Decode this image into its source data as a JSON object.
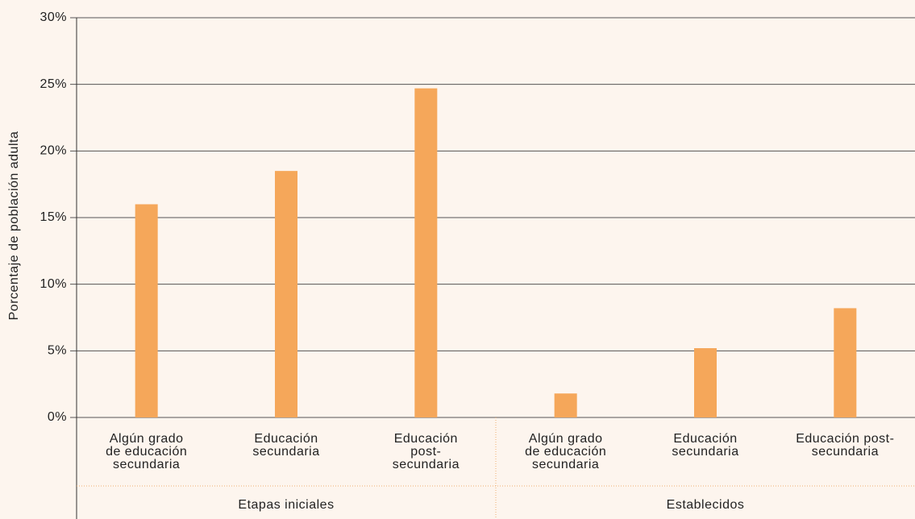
{
  "chart_data": {
    "type": "bar",
    "y_label": "Porcentaje de población adulta",
    "categories": [
      [
        "Algún grado",
        "de educación",
        "secundaria"
      ],
      [
        "Educación",
        "secundaria"
      ],
      [
        "Educación",
        "post-",
        "secundaria"
      ],
      [
        "Algún grado",
        "de educación",
        "secundaria"
      ],
      [
        "Educación",
        "secundaria"
      ],
      [
        "Educación post-",
        "secundaria"
      ]
    ],
    "groups": [
      {
        "name": "Etapas iniciales",
        "size": 3
      },
      {
        "name": "Establecidos",
        "size": 3
      }
    ],
    "values": [
      16,
      18.5,
      24.7,
      1.8,
      5.2,
      8.2
    ],
    "color": "#f5a75a",
    "ylim": [
      0,
      30
    ],
    "yticks": [
      {
        "value": 0,
        "label": "0%"
      },
      {
        "value": 5,
        "label": "5%"
      },
      {
        "value": 10,
        "label": "10%"
      },
      {
        "value": 15,
        "label": "15%"
      },
      {
        "value": 20,
        "label": "20%"
      },
      {
        "value": 25,
        "label": "25%"
      },
      {
        "value": 30,
        "label": "30%"
      }
    ],
    "grid": true
  }
}
